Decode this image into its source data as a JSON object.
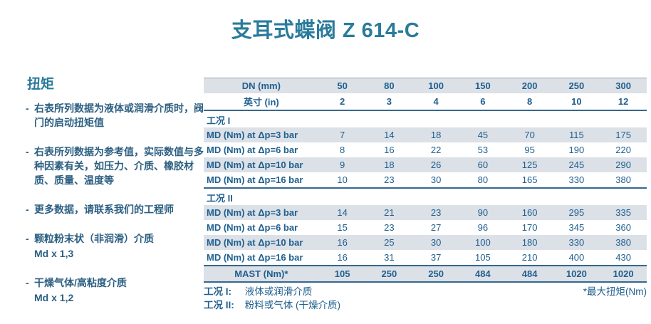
{
  "title": "支耳式蝶阀 Z 614-C",
  "sidebar": {
    "heading": "扭矩",
    "marker": "-",
    "bullets": [
      {
        "text": "右表所列数据为液体或润滑介质时，阀门的启动扭矩值"
      },
      {
        "text": "右表所列数据为参考值，实际数值与多种因素有关，如压力、介质、橡胶材质、质量、温度等"
      },
      {
        "text": "更多数据，请联系我们的工程师"
      },
      {
        "text": "颗粒粉末状（非润滑）介质",
        "sub": "Md x 1,3"
      },
      {
        "text": "干燥气体/高粘度介质",
        "sub": "Md x 1,2"
      }
    ]
  },
  "table": {
    "header_rows": [
      {
        "label": "DN (mm)",
        "shaded": true,
        "values": [
          "50",
          "80",
          "100",
          "150",
          "200",
          "250",
          "300"
        ]
      },
      {
        "label": "英寸 (in)",
        "shaded": false,
        "values": [
          "2",
          "3",
          "4",
          "6",
          "8",
          "10",
          "12"
        ]
      }
    ],
    "sections": [
      {
        "title": "工况 I",
        "rows": [
          {
            "label": "MD (Nm) at Δp=3 bar",
            "values": [
              "7",
              "14",
              "18",
              "45",
              "70",
              "115",
              "175"
            ]
          },
          {
            "label": "MD (Nm) at Δp=6 bar",
            "values": [
              "8",
              "16",
              "22",
              "53",
              "95",
              "190",
              "220"
            ]
          },
          {
            "label": "MD (Nm) at Δp=10 bar",
            "values": [
              "9",
              "18",
              "26",
              "60",
              "125",
              "245",
              "290"
            ]
          },
          {
            "label": "MD (Nm) at Δp=16 bar",
            "values": [
              "10",
              "23",
              "30",
              "80",
              "165",
              "330",
              "380"
            ]
          }
        ]
      },
      {
        "title": "工况 II",
        "rows": [
          {
            "label": "MD (Nm) at Δp=3 bar",
            "values": [
              "14",
              "21",
              "23",
              "90",
              "160",
              "295",
              "335"
            ]
          },
          {
            "label": "MD (Nm) at Δp=6 bar",
            "values": [
              "15",
              "23",
              "27",
              "96",
              "170",
              "345",
              "360"
            ]
          },
          {
            "label": "MD (Nm) at Δp=10 bar",
            "values": [
              "16",
              "25",
              "30",
              "100",
              "180",
              "330",
              "380"
            ]
          },
          {
            "label": "MD (Nm) at Δp=16 bar",
            "values": [
              "16",
              "31",
              "37",
              "105",
              "210",
              "400",
              "430"
            ]
          }
        ]
      }
    ],
    "mast_row": {
      "label": "MAST (Nm)*",
      "values": [
        "105",
        "250",
        "250",
        "484",
        "484",
        "1020",
        "1020"
      ]
    },
    "notes": [
      {
        "term": "工况 I:",
        "desc": "液体或润滑介质"
      },
      {
        "term": "工况 II:",
        "desc": "粉料或气体 (干燥介质)"
      }
    ],
    "note_right": "*最大扭矩(Nm)"
  },
  "colors": {
    "title": "#2a7b9b",
    "table_text": "#20608f",
    "sidebar_text": "#2c5f81",
    "row_shade": "#dce0e7",
    "rule_dark": "#34688f",
    "rule_light": "#9ba2ab"
  }
}
